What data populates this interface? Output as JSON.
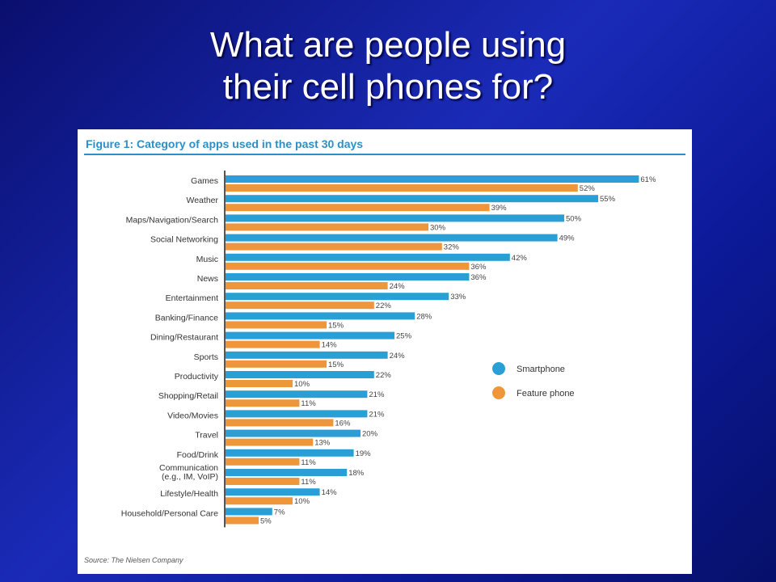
{
  "slide": {
    "title_line1": "What are people using",
    "title_line2": "their cell phones for?"
  },
  "colors": {
    "smartphone": "#2a9fd6",
    "feature_phone": "#f0963a",
    "figure_title": "#2d8fc6"
  },
  "chart_data": {
    "type": "bar",
    "orientation": "horizontal",
    "title": "Figure 1: Category of apps used in the past 30 days",
    "source": "Source: The Nielsen Company",
    "categories": [
      [
        "Games"
      ],
      [
        "Weather"
      ],
      [
        "Maps/Navigation/Search"
      ],
      [
        "Social Networking"
      ],
      [
        "Music"
      ],
      [
        "News"
      ],
      [
        "Entertainment"
      ],
      [
        "Banking/Finance"
      ],
      [
        "Dining/Restaurant"
      ],
      [
        "Sports"
      ],
      [
        "Productivity"
      ],
      [
        "Shopping/Retail"
      ],
      [
        "Video/Movies"
      ],
      [
        "Travel"
      ],
      [
        "Food/Drink"
      ],
      [
        "Communication",
        "(e.g., IM, VoIP)"
      ],
      [
        "Lifestyle/Health"
      ],
      [
        "Household/Personal Care"
      ]
    ],
    "series": [
      {
        "name": "Smartphone",
        "values": [
          61,
          55,
          50,
          49,
          42,
          36,
          33,
          28,
          25,
          24,
          22,
          21,
          21,
          20,
          19,
          18,
          14,
          7
        ]
      },
      {
        "name": "Feature phone",
        "values": [
          52,
          39,
          30,
          32,
          36,
          24,
          22,
          15,
          14,
          15,
          10,
          11,
          16,
          13,
          11,
          11,
          10,
          5
        ]
      }
    ],
    "value_suffix": "%",
    "legend_position": "right",
    "grid": false
  }
}
